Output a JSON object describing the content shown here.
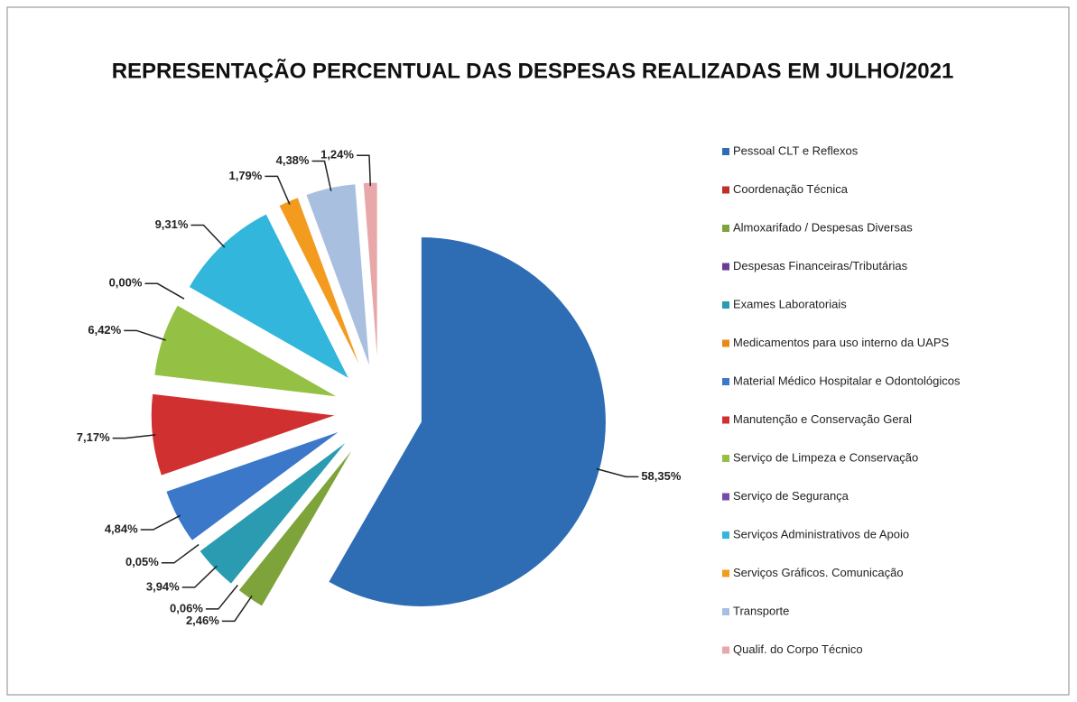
{
  "chart_data": {
    "type": "pie",
    "title": "REPRESENTAÇÃO PERCENTUAL DAS DESPESAS REALIZADAS EM JULHO/2021",
    "categories": [
      "Pessoal CLT e Reflexos",
      "Coordenação Técnica",
      "Almoxarifado / Despesas Diversas",
      "Despesas Financeiras/Tributárias",
      "Exames Laboratoriais",
      "Medicamentos para uso interno da UAPS",
      "Material Médico Hospitalar e Odontológicos",
      "Manutenção e Conservação Geral",
      "Serviço de Limpeza e Conservação",
      "Serviço de Segurança",
      "Serviços Administrativos de Apoio",
      "Serviços Gráficos. Comunicação",
      "Transporte",
      "Qualif. do Corpo Técnico"
    ],
    "values": [
      58.35,
      0,
      2.46,
      0.06,
      3.94,
      0.05,
      4.84,
      7.17,
      6.42,
      0,
      9.31,
      1.79,
      4.38,
      1.24
    ],
    "value_labels": [
      "58,35%",
      null,
      "2,46%",
      "0,06%",
      "3,94%",
      "0,05%",
      "4,84%",
      "7,17%",
      "6,42%",
      "0,00%",
      "9,31%",
      "1,79%",
      "4,38%",
      "1,24%"
    ],
    "colors": [
      "#2e6db4",
      "#c0302b",
      "#7ea33a",
      "#6a3e97",
      "#2a9bb0",
      "#e88a1a",
      "#3b78c9",
      "#d03030",
      "#94c043",
      "#7a4aa8",
      "#33b6dc",
      "#f39b1f",
      "#a8bfe0",
      "#e8a7a8"
    ],
    "legend": "right"
  }
}
